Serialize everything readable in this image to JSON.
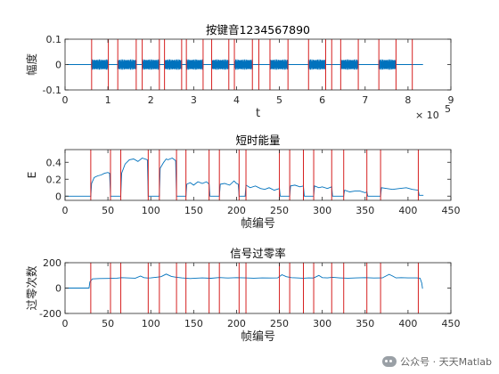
{
  "chart_data": [
    {
      "type": "line",
      "title": "按键音1234567890",
      "xlabel": "t",
      "ylabel": "幅度",
      "xlim": [
        0,
        900000
      ],
      "ylim": [
        -0.1,
        0.1
      ],
      "xticks": [
        0,
        100000,
        200000,
        300000,
        400000,
        500000,
        600000,
        700000,
        800000,
        900000
      ],
      "xtick_labels": [
        "0",
        "1",
        "2",
        "3",
        "4",
        "5",
        "6",
        "7",
        "8",
        "9"
      ],
      "yticks": [
        -0.1,
        0,
        0.1
      ],
      "ytick_labels": [
        "-0.1",
        "0",
        "0.1"
      ],
      "x_exponent_label": "× 10",
      "x_exponent_power": "5",
      "series_color": "#0072BD",
      "segment_amplitude": 0.02,
      "segments": [
        [
          62000,
          101000
        ],
        [
          123000,
          166000
        ],
        [
          180000,
          220000
        ],
        [
          232000,
          272000
        ],
        [
          283000,
          322000
        ],
        [
          342000,
          382000
        ],
        [
          395000,
          437000
        ],
        [
          478000,
          520000
        ],
        [
          568000,
          608000
        ],
        [
          643000,
          684000
        ],
        [
          732000,
          772000
        ]
      ],
      "boundaries": [
        62000,
        101000,
        123000,
        166000,
        180000,
        220000,
        232000,
        272000,
        283000,
        322000,
        342000,
        382000,
        395000,
        437000,
        452000,
        478000,
        520000,
        568000,
        608000,
        622000,
        643000,
        684000,
        732000,
        772000,
        810000
      ],
      "boundary_color": "#D62020"
    },
    {
      "type": "line",
      "title": "短时能量",
      "xlabel": "帧编号",
      "ylabel": "E",
      "xlim": [
        0,
        450
      ],
      "ylim": [
        -0.05,
        0.55
      ],
      "xticks": [
        0,
        50,
        100,
        150,
        200,
        250,
        300,
        350,
        400,
        450
      ],
      "xtick_labels": [
        "0",
        "50",
        "100",
        "150",
        "200",
        "250",
        "300",
        "350",
        "400",
        "450"
      ],
      "yticks": [
        0,
        0.2,
        0.4
      ],
      "ytick_labels": [
        "0",
        "0.2",
        "0.4"
      ],
      "series_color": "#0072BD",
      "x": [
        0,
        30,
        31,
        34,
        38,
        42,
        46,
        50,
        52,
        53,
        65,
        66,
        70,
        75,
        80,
        85,
        90,
        96,
        97,
        110,
        111,
        115,
        118,
        120,
        125,
        129,
        130,
        141,
        142,
        146,
        150,
        155,
        160,
        165,
        168,
        169,
        180,
        181,
        186,
        192,
        197,
        200,
        202,
        203,
        210,
        211,
        216,
        222,
        228,
        233,
        238,
        244,
        250,
        251,
        262,
        263,
        268,
        274,
        278,
        279,
        290,
        291,
        296,
        300,
        306,
        311,
        312,
        325,
        326,
        332,
        338,
        344,
        350,
        352,
        353,
        368,
        369,
        375,
        382,
        390,
        398,
        405,
        412,
        413,
        418
      ],
      "values": [
        0,
        0,
        0.15,
        0.22,
        0.24,
        0.25,
        0.27,
        0.28,
        0.27,
        0,
        0,
        0.27,
        0.38,
        0.43,
        0.44,
        0.41,
        0.45,
        0.43,
        0,
        0,
        0.33,
        0.4,
        0.44,
        0.43,
        0.45,
        0.42,
        0,
        0,
        0.14,
        0.16,
        0.13,
        0.17,
        0.15,
        0.17,
        0.14,
        0,
        0,
        0.14,
        0.15,
        0.13,
        0.18,
        0.15,
        0.14,
        0,
        0,
        0.13,
        0.1,
        0.12,
        0.09,
        0.08,
        0.1,
        0.07,
        0.09,
        0,
        0,
        0.12,
        0.13,
        0.11,
        0.12,
        0,
        0,
        0.12,
        0.1,
        0.11,
        0.09,
        0.11,
        0,
        0,
        0.07,
        0.05,
        0.06,
        0.06,
        0.04,
        0.05,
        0,
        0,
        0.1,
        0.09,
        0.08,
        0.09,
        0.1,
        0.08,
        0.07,
        0.01,
        0.01
      ],
      "boundaries": [
        30,
        53,
        65,
        97,
        110,
        130,
        141,
        168,
        180,
        203,
        211,
        250,
        262,
        278,
        290,
        311,
        325,
        352,
        368,
        412
      ],
      "boundary_color": "#D62020"
    },
    {
      "type": "line",
      "title": "信号过零率",
      "xlabel": "帧编号",
      "ylabel": "过零次数",
      "xlim": [
        0,
        450
      ],
      "ylim": [
        -200,
        200
      ],
      "xticks": [
        0,
        50,
        100,
        150,
        200,
        250,
        300,
        350,
        400,
        450
      ],
      "xtick_labels": [
        "0",
        "50",
        "100",
        "150",
        "200",
        "250",
        "300",
        "350",
        "400",
        "450"
      ],
      "yticks": [
        -200,
        0,
        200
      ],
      "ytick_labels": [
        "-200",
        "0",
        "200"
      ],
      "series_color": "#0072BD",
      "x": [
        0,
        28,
        29,
        32,
        40,
        50,
        60,
        66,
        72,
        82,
        88,
        92,
        96,
        100,
        106,
        112,
        118,
        124,
        130,
        136,
        146,
        152,
        160,
        170,
        180,
        190,
        200,
        210,
        220,
        230,
        240,
        248,
        253,
        258,
        264,
        270,
        278,
        284,
        290,
        296,
        300,
        306,
        312,
        320,
        330,
        340,
        350,
        360,
        370,
        378,
        382,
        386,
        392,
        400,
        410,
        414,
        416,
        417
      ],
      "values": [
        0,
        0,
        50,
        72,
        75,
        76,
        78,
        82,
        80,
        78,
        95,
        82,
        79,
        80,
        85,
        90,
        110,
        92,
        85,
        80,
        75,
        78,
        80,
        77,
        83,
        79,
        82,
        80,
        78,
        80,
        79,
        80,
        105,
        90,
        82,
        80,
        78,
        80,
        79,
        100,
        82,
        80,
        85,
        80,
        78,
        80,
        82,
        79,
        80,
        108,
        95,
        80,
        82,
        80,
        80,
        78,
        40,
        -5
      ],
      "boundaries": [
        30,
        53,
        65,
        97,
        110,
        130,
        141,
        168,
        180,
        203,
        211,
        250,
        262,
        278,
        290,
        311,
        325,
        352,
        368,
        412
      ],
      "boundary_color": "#D62020"
    }
  ],
  "watermark": {
    "text": "公众号 · 天天Matlab",
    "icon": "wechat-icon"
  }
}
